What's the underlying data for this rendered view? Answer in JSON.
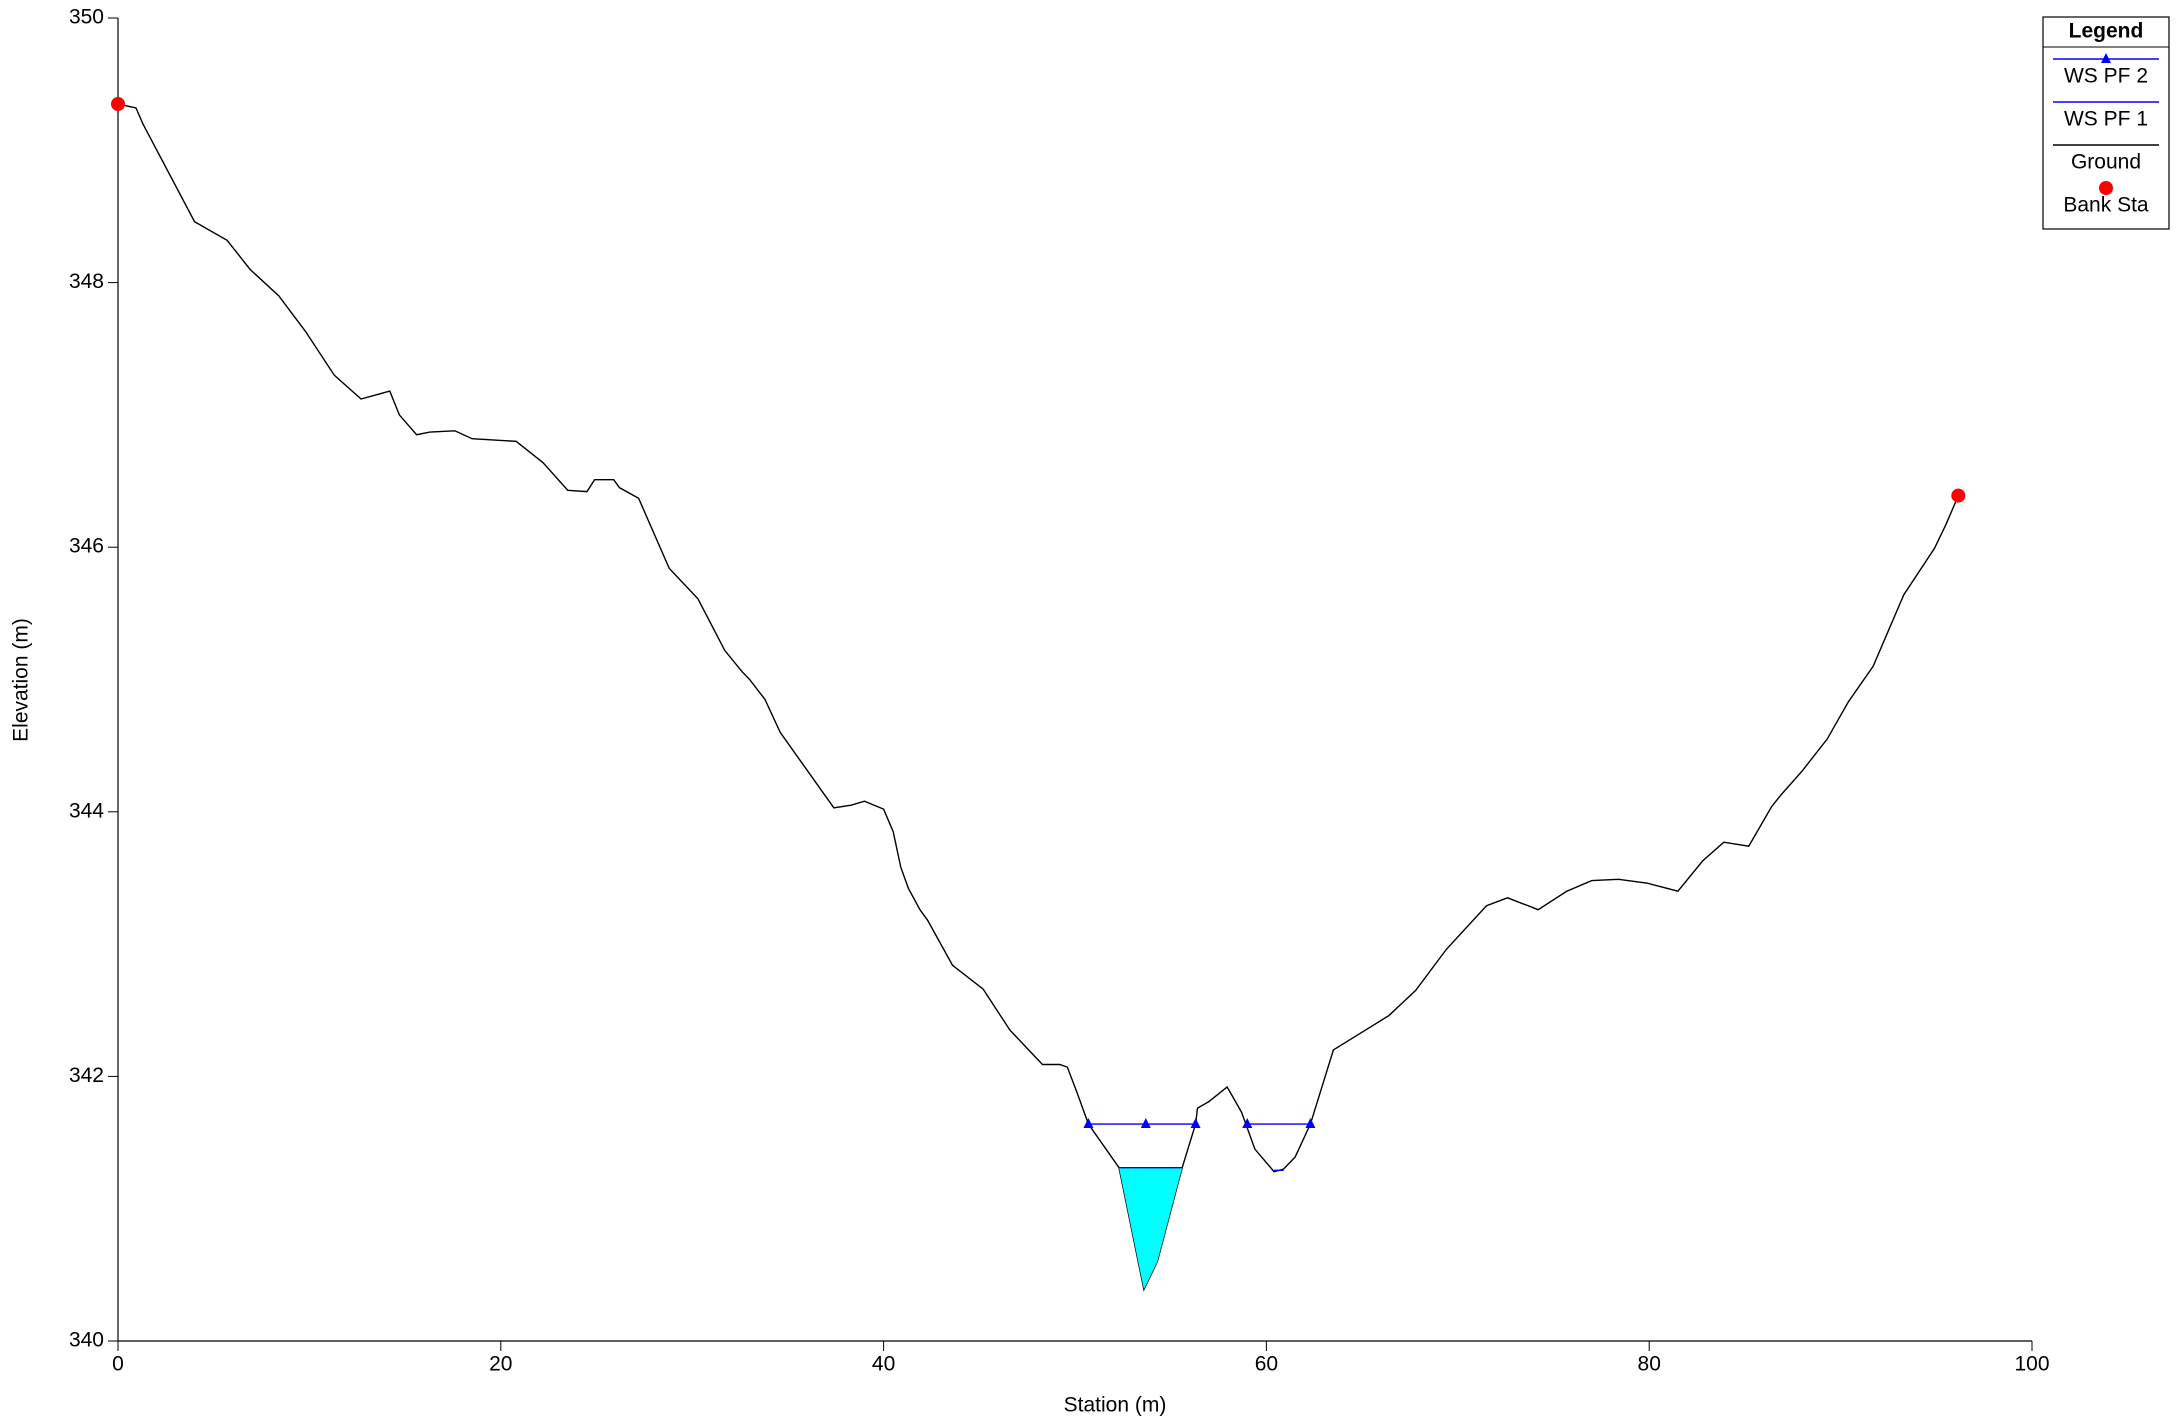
{
  "chart_data": {
    "type": "line",
    "xlabel": "Station (m)",
    "ylabel": "Elevation (m)",
    "xlim": [
      0,
      100
    ],
    "xticks": [
      0,
      20,
      40,
      60,
      80,
      100
    ],
    "ylim": [
      340,
      350
    ],
    "yticks": [
      340,
      342,
      344,
      346,
      348,
      350
    ],
    "legend": {
      "title": "Legend",
      "position": "upper right"
    },
    "series": [
      {
        "name": "Ground",
        "color": "#000000",
        "x": [
          0,
          0.94,
          1.3,
          4.0,
          5.7,
          6.9,
          8.4,
          9.8,
          11.3,
          12.7,
          14.2,
          14.7,
          15.6,
          16.3,
          17.6,
          18.5,
          20.8,
          22.2,
          23.5,
          24.5,
          24.9,
          25.9,
          26.2,
          27.2,
          28.8,
          30.3,
          31.7,
          32.6,
          33.0,
          33.8,
          34.6,
          37.4,
          38.3,
          39.0,
          40.0,
          40.5,
          40.9,
          41.3,
          41.9,
          42.3,
          43.6,
          45.2,
          46.6,
          48.3,
          49.2,
          49.6,
          50.1,
          50.7,
          52.3,
          53.6,
          54.3,
          55.6,
          56.3,
          56.4,
          57.0,
          57.95,
          58.7,
          59.4,
          60.4,
          60.9,
          61.5,
          62.3,
          63.5,
          65.4,
          66.4,
          67.8,
          69.4,
          71.5,
          72.6,
          74.2,
          75.7,
          77.0,
          78.4,
          79.9,
          80.7,
          81.5,
          82.8,
          83.9,
          85.2,
          86.4,
          86.9,
          88.0,
          89.3,
          90.4,
          91.7,
          93.3,
          94.9,
          95.5,
          96.15
        ],
        "values": [
          349.35,
          349.32,
          349.2,
          348.46,
          348.32,
          348.1,
          347.9,
          347.63,
          347.3,
          347.12,
          347.18,
          347.0,
          346.85,
          346.87,
          346.88,
          346.82,
          346.8,
          346.64,
          346.43,
          346.42,
          346.51,
          346.51,
          346.45,
          346.37,
          345.84,
          345.61,
          345.22,
          345.06,
          345.0,
          344.85,
          344.6,
          344.03,
          344.05,
          344.08,
          344.02,
          343.85,
          343.58,
          343.42,
          343.26,
          343.18,
          342.84,
          342.66,
          342.35,
          342.09,
          342.09,
          342.07,
          341.88,
          341.64,
          341.31,
          340.39,
          340.6,
          341.31,
          341.64,
          341.76,
          341.81,
          341.92,
          341.73,
          341.45,
          341.28,
          341.3,
          341.39,
          341.64,
          342.2,
          342.37,
          342.46,
          342.65,
          342.96,
          343.29,
          343.35,
          343.26,
          343.4,
          343.48,
          343.49,
          343.46,
          343.43,
          343.4,
          343.63,
          343.77,
          343.74,
          344.04,
          344.13,
          344.31,
          344.55,
          344.83,
          345.1,
          345.64,
          345.99,
          346.17,
          346.39
        ]
      },
      {
        "name": "WS PF 2",
        "color": "#0000ff",
        "marker": "triangle",
        "x": [
          50.7,
          53.7,
          56.3,
          null,
          59.0,
          62.3
        ],
        "values": [
          341.64,
          341.64,
          341.64,
          null,
          341.64,
          341.64
        ]
      },
      {
        "name": "WS PF 1",
        "color": "#0000ff",
        "fill": "#00ffff",
        "x": [
          52.3,
          55.6,
          null,
          60.4,
          60.9
        ],
        "values": [
          341.31,
          341.31,
          null,
          341.29,
          341.29
        ]
      },
      {
        "name": "Bank Sta",
        "color": "#ff0000",
        "marker": "circle",
        "x": [
          0,
          96.15
        ],
        "values": [
          349.35,
          346.39
        ]
      }
    ]
  }
}
